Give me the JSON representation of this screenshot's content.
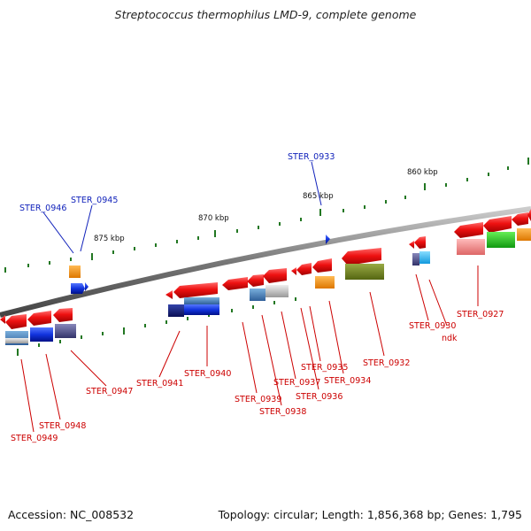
{
  "title": "Streptococcus thermophilus LMD-9, complete genome",
  "footer": {
    "accession": "Accession: NC_008532",
    "summary": "Topology: circular; Length: 1,856,368 bp; Genes: 1,795"
  },
  "colors": {
    "gene_red": "#ee1111",
    "gene_blue": "#1133dd",
    "label_red": "#cc0000",
    "label_blue": "#1122bb",
    "backbone": "#888888",
    "tick_green": "#227722"
  },
  "scale_labels": [
    "875 kbp",
    "870 kbp",
    "865 kbp",
    "860 kbp"
  ],
  "gene_labels": [
    "STER_0946",
    "STER_0945",
    "STER_0933",
    "STER_0949",
    "STER_0948",
    "STER_0947",
    "STER_0941",
    "STER_0940",
    "STER_0939",
    "STER_0938",
    "STER_0937",
    "STER_0936",
    "STER_0935",
    "STER_0934",
    "STER_0932",
    "STER_0930",
    "ndk",
    "STER_0927"
  ]
}
